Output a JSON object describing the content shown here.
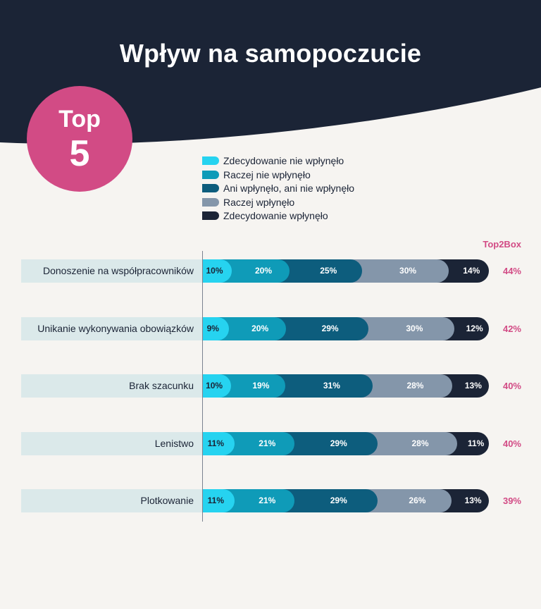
{
  "title": "Wpływ na samopoczucie",
  "badge": {
    "line1": "Top",
    "line2": "5"
  },
  "colors": {
    "header_bg": "#1b2436",
    "page_bg": "#f6f4f1",
    "accent": "#d24b85",
    "row_bg": "#dbe9ea"
  },
  "chart_data": {
    "type": "bar",
    "stacked": true,
    "orientation": "horizontal",
    "categories": [
      "Donoszenie na współpracowników",
      "Unikanie wykonywania obowiązków",
      "Brak szacunku",
      "Lenistwo",
      "Plotkowanie"
    ],
    "series": [
      {
        "name": "Zdecydowanie nie wpłynęło",
        "color": "#26d3f0",
        "text_color": "#1b2436",
        "values": [
          10,
          9,
          10,
          11,
          11
        ]
      },
      {
        "name": "Raczej nie wpłynęło",
        "color": "#0f9bb8",
        "text_color": "#ffffff",
        "values": [
          20,
          20,
          19,
          21,
          21
        ]
      },
      {
        "name": "Ani wpłynęło, ani nie wpłynęło",
        "color": "#0d5d7d",
        "text_color": "#ffffff",
        "values": [
          25,
          29,
          31,
          29,
          29
        ]
      },
      {
        "name": "Raczej wpłynęło",
        "color": "#8496aa",
        "text_color": "#ffffff",
        "values": [
          30,
          30,
          28,
          28,
          26
        ]
      },
      {
        "name": "Zdecydowanie wpłynęło",
        "color": "#1b2436",
        "text_color": "#ffffff",
        "values": [
          14,
          12,
          13,
          11,
          13
        ]
      }
    ],
    "top2box_header": "Top2Box",
    "top2box": [
      "44%",
      "42%",
      "40%",
      "40%",
      "39%"
    ],
    "value_suffix": "%",
    "legend_position": "top",
    "grid": false
  }
}
